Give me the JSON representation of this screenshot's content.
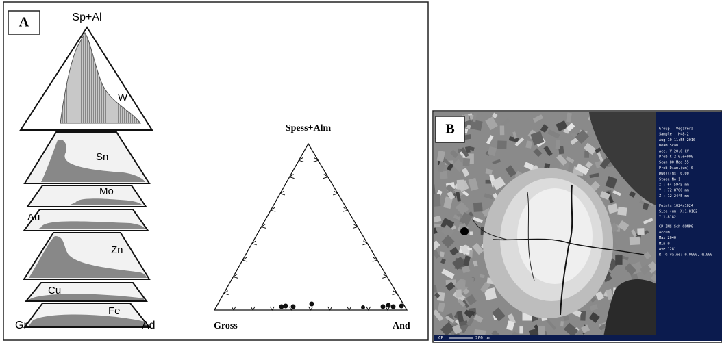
{
  "panel_a": {
    "label": "A",
    "stack": {
      "apex_label": "Sp+Al",
      "left_label": "Gr",
      "right_label": "Ad",
      "fields": [
        "W",
        "Sn",
        "Mo",
        "Au",
        "Zn",
        "Cu",
        "Fe"
      ]
    },
    "ternary": {
      "apex_label": "Spess+Alm",
      "left_label": "Gross",
      "right_label": "And"
    }
  },
  "panel_b": {
    "label": "B",
    "info": [
      "Group : VegaVera",
      "Sample : H48-2",
      "Aug 10 11:55 2010",
      "Beam Scan",
      "Acc. V    20.0 kV",
      "Prob C  2.07e+000",
      "Scan 80  Mag 55",
      "Prob Diam.(um) 0",
      "Dwell(ms) 0.00",
      "Stage No.1",
      "X : 64.5945 mm",
      "Y : 72.8700 mm",
      "Z : 12.2445 mm",
      "Points 1024x1024",
      "Size   (um) X:1.8182",
      "Y:1.8182",
      "CP IMS  Sch  COMP0",
      "Accum. 1",
      "Max     2040",
      "Min        0",
      "Ave     1281",
      "R, G value: 0.0000, 0.000"
    ],
    "scale_left": "CP",
    "scale_bar": "200 µm"
  }
}
